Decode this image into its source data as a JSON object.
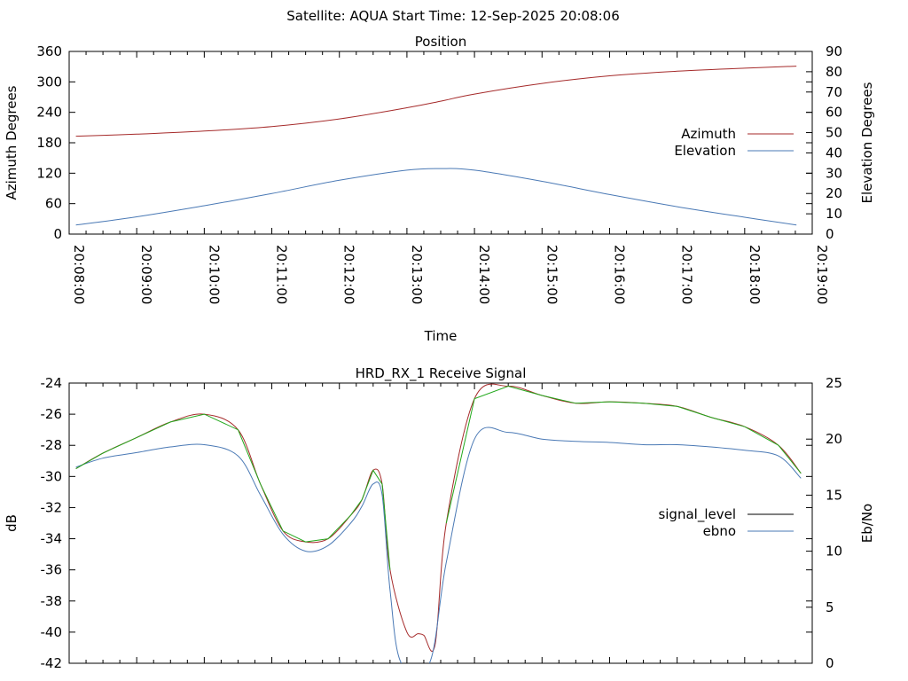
{
  "header": {
    "title": "Satellite: AQUA    Start Time: 12-Sep-2025 20:08:06"
  },
  "colors": {
    "azimuth": "#a52a2a",
    "elevation": "#4a79b5",
    "signal_level": "#a52a2a",
    "signal_green": "#22a81c",
    "ebno": "#4a79b5",
    "axis": "#000000"
  },
  "chart_data": [
    {
      "type": "line",
      "title": "Position",
      "xlabel": "Time",
      "ylabel": "Azimuth Degrees",
      "y2label": "Elevation Degrees",
      "ylim": [
        0,
        360
      ],
      "y2lim": [
        0,
        90
      ],
      "yticks": [
        "0",
        "60",
        "120",
        "180",
        "240",
        "300",
        "360"
      ],
      "y2ticks": [
        "0",
        "10",
        "20",
        "30",
        "40",
        "50",
        "60",
        "70",
        "80",
        "90"
      ],
      "xticks": [
        "20:08:00",
        "20:09:00",
        "20:10:00",
        "20:11:00",
        "20:12:00",
        "20:13:00",
        "20:14:00",
        "20:15:00",
        "20:16:00",
        "20:17:00",
        "20:18:00",
        "20:19:00"
      ],
      "xlim_seconds_after_2008": [
        0,
        660
      ],
      "legend_position": "right",
      "series": [
        {
          "name": "Azimuth",
          "axis": "y",
          "x": [
            "20:08:06",
            "20:09:00",
            "20:10:00",
            "20:11:00",
            "20:12:00",
            "20:13:00",
            "20:13:30",
            "20:14:00",
            "20:15:00",
            "20:16:00",
            "20:17:00",
            "20:18:00",
            "20:18:46"
          ],
          "values": [
            193,
            197,
            203,
            212,
            227,
            249,
            262,
            276,
            297,
            312,
            321,
            327,
            331
          ]
        },
        {
          "name": "Elevation",
          "axis": "y2",
          "x": [
            "20:08:06",
            "20:09:00",
            "20:10:00",
            "20:11:00",
            "20:12:00",
            "20:13:00",
            "20:13:30",
            "20:14:00",
            "20:15:00",
            "20:16:00",
            "20:17:00",
            "20:18:00",
            "20:18:46"
          ],
          "values": [
            4.5,
            8.5,
            14,
            20,
            26.5,
            31.5,
            32.3,
            31.5,
            26,
            19.5,
            13.5,
            8.3,
            4.5
          ]
        }
      ]
    },
    {
      "type": "line",
      "title": "HRD_RX_1 Receive Signal",
      "ylabel": "dB",
      "y2label": "Eb/No",
      "ylim": [
        -42,
        -24
      ],
      "y2lim": [
        0,
        25
      ],
      "yticks": [
        "-42",
        "-40",
        "-38",
        "-36",
        "-34",
        "-32",
        "-30",
        "-28",
        "-26",
        "-24"
      ],
      "y2ticks": [
        "0",
        "5",
        "10",
        "15",
        "20",
        "25"
      ],
      "x_tick_count": 44,
      "xlim_seconds_after_2008": [
        0,
        660
      ],
      "legend_position": "right",
      "series": [
        {
          "name": "signal_level",
          "axis": "y",
          "x": [
            "20:08:06",
            "20:08:30",
            "20:09:00",
            "20:09:30",
            "20:10:00",
            "20:10:30",
            "20:10:50",
            "20:11:10",
            "20:11:30",
            "20:11:50",
            "20:12:10",
            "20:12:20",
            "20:12:30",
            "20:12:38",
            "20:12:45",
            "20:13:00",
            "20:13:10",
            "20:13:15",
            "20:13:25",
            "20:13:35",
            "20:14:00",
            "20:14:30",
            "20:15:00",
            "20:15:30",
            "20:16:00",
            "20:16:30",
            "20:17:00",
            "20:17:30",
            "20:18:00",
            "20:18:30",
            "20:18:50"
          ],
          "values": [
            -29.5,
            -28.5,
            -27.5,
            -26.5,
            -26.0,
            -27.0,
            -30.5,
            -33.5,
            -34.2,
            -34.0,
            -32.5,
            -31.5,
            -29.6,
            -30.5,
            -36.0,
            -40.0,
            -40.1,
            -40.2,
            -40.8,
            -33.0,
            -25.0,
            -24.2,
            -24.8,
            -25.3,
            -25.2,
            -25.3,
            -25.5,
            -26.2,
            -26.8,
            -28.0,
            -29.8
          ]
        },
        {
          "name": "ebno",
          "axis": "y2",
          "x": [
            "20:08:06",
            "20:08:30",
            "20:09:00",
            "20:09:30",
            "20:10:00",
            "20:10:30",
            "20:10:50",
            "20:11:10",
            "20:11:30",
            "20:11:50",
            "20:12:10",
            "20:12:20",
            "20:12:30",
            "20:12:38",
            "20:12:45",
            "20:12:55",
            "20:13:20",
            "20:13:35",
            "20:14:00",
            "20:14:30",
            "20:15:00",
            "20:15:30",
            "20:16:00",
            "20:16:30",
            "20:17:00",
            "20:17:30",
            "20:18:00",
            "20:18:30",
            "20:18:50"
          ],
          "values": [
            17.5,
            18.3,
            18.8,
            19.3,
            19.5,
            18.5,
            15.0,
            11.5,
            10.0,
            10.5,
            12.5,
            14.0,
            16.0,
            15.0,
            6.5,
            0,
            0,
            9.0,
            20.0,
            20.6,
            20.0,
            19.8,
            19.7,
            19.5,
            19.5,
            19.3,
            19.0,
            18.5,
            16.5
          ]
        }
      ]
    }
  ]
}
